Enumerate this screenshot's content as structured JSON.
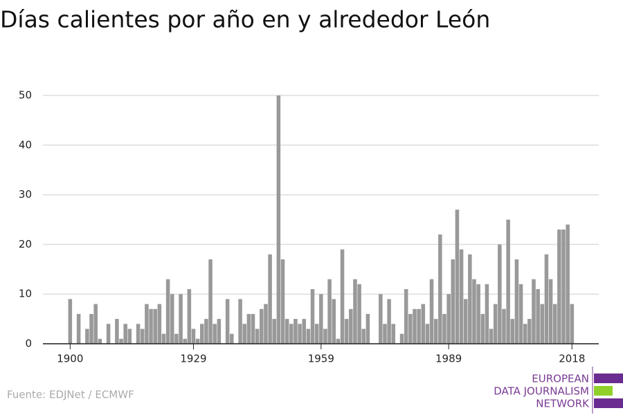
{
  "chart_data": {
    "type": "bar",
    "title": "Días calientes por año en y alrededor León",
    "x": [
      1900,
      1901,
      1902,
      1903,
      1904,
      1905,
      1906,
      1907,
      1908,
      1909,
      1910,
      1911,
      1912,
      1913,
      1914,
      1915,
      1916,
      1917,
      1918,
      1919,
      1920,
      1921,
      1922,
      1923,
      1924,
      1925,
      1926,
      1927,
      1928,
      1929,
      1930,
      1931,
      1932,
      1933,
      1934,
      1935,
      1936,
      1937,
      1938,
      1939,
      1940,
      1941,
      1942,
      1943,
      1944,
      1945,
      1946,
      1947,
      1948,
      1949,
      1950,
      1951,
      1952,
      1953,
      1954,
      1955,
      1956,
      1957,
      1958,
      1959,
      1960,
      1961,
      1962,
      1963,
      1964,
      1965,
      1966,
      1967,
      1968,
      1969,
      1970,
      1971,
      1972,
      1973,
      1974,
      1975,
      1976,
      1977,
      1978,
      1979,
      1980,
      1981,
      1982,
      1983,
      1984,
      1985,
      1986,
      1987,
      1988,
      1989,
      1990,
      1991,
      1992,
      1993,
      1994,
      1995,
      1996,
      1997,
      1998,
      1999,
      2000,
      2001,
      2002,
      2003,
      2004,
      2005,
      2006,
      2007,
      2008,
      2009,
      2010,
      2011,
      2012,
      2013,
      2014,
      2015,
      2016,
      2017,
      2018
    ],
    "values": [
      9,
      0,
      6,
      0,
      3,
      6,
      8,
      1,
      0,
      4,
      0,
      5,
      1,
      4,
      3,
      0,
      4,
      3,
      8,
      7,
      7,
      8,
      2,
      13,
      10,
      2,
      10,
      1,
      11,
      3,
      1,
      4,
      5,
      17,
      4,
      5,
      0,
      9,
      2,
      0,
      9,
      4,
      6,
      6,
      3,
      7,
      8,
      18,
      5,
      50,
      17,
      5,
      4,
      5,
      4,
      5,
      3,
      11,
      4,
      10,
      3,
      13,
      9,
      1,
      19,
      5,
      7,
      13,
      12,
      3,
      6,
      0,
      0,
      10,
      4,
      9,
      4,
      0,
      2,
      11,
      6,
      7,
      7,
      8,
      4,
      13,
      5,
      22,
      6,
      10,
      17,
      27,
      19,
      9,
      18,
      13,
      12,
      6,
      12,
      3,
      8,
      20,
      7,
      25,
      5,
      17,
      12,
      4,
      5,
      13,
      11,
      8,
      18,
      13,
      8,
      23,
      23,
      24,
      8
    ],
    "color": "#999999",
    "xlim": [
      1893.6,
      2024.3
    ],
    "xticks": [
      1900,
      1929,
      1959,
      1989,
      2018
    ],
    "ylim": [
      0,
      50
    ],
    "yticks": [
      0,
      10,
      20,
      30,
      40,
      50
    ],
    "grid": true,
    "source": "Fuente: EDJNet / ECMWF",
    "logo": [
      "EUROPEAN",
      "DATA JOURNALISM",
      "NETWORK"
    ]
  }
}
